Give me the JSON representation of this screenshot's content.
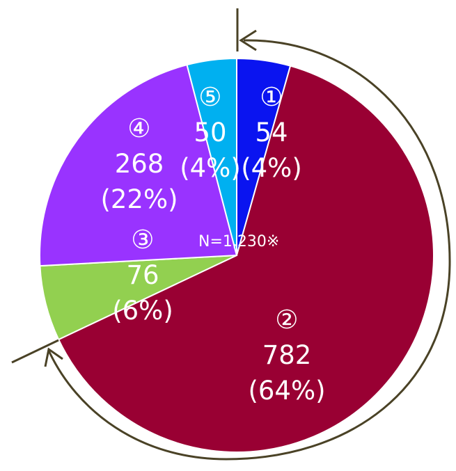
{
  "chart_data": {
    "type": "pie",
    "center_label": "N=1,230※",
    "start_angle_deg": 0,
    "direction": "clockwise",
    "slices": [
      {
        "marker": "①",
        "value": 54,
        "value_label": "54",
        "percent_label": "(4%)",
        "color": "#0a14f0"
      },
      {
        "marker": "②",
        "value": 782,
        "value_label": "782",
        "percent_label": "(64%)",
        "color": "#990033"
      },
      {
        "marker": "③",
        "value": 76,
        "value_label": "76",
        "percent_label": "(6%)",
        "color": "#92d050"
      },
      {
        "marker": "④",
        "value": 268,
        "value_label": "268",
        "percent_label": "(22%)",
        "color": "#9933ff"
      },
      {
        "marker": "⑤",
        "value": 50,
        "value_label": "50",
        "percent_label": "(4%)",
        "color": "#00b0f0"
      }
    ],
    "annotation_color": "#4a4226"
  }
}
